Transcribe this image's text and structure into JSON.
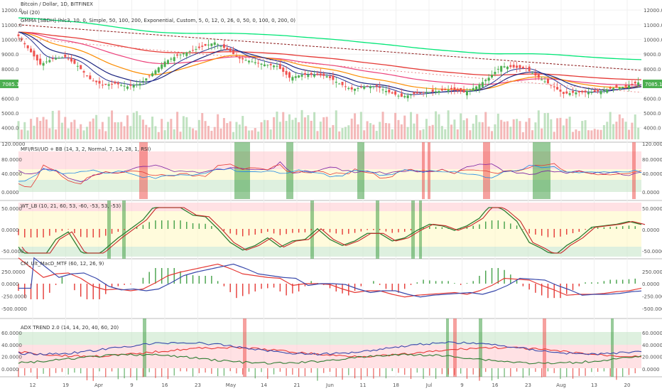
{
  "header": {
    "title": "Bitcoin / Dollar, 1D, BITFINEX",
    "vol_label": "Vol (20)",
    "gmma_label": "GMMA [SBDH] (hlc3, 10, 0, Simple, 50, 100, 200, Exponential, Custom, 5, 0, 12, 0, 26, 0, 50, 0, 100, 0, 200, 0)"
  },
  "price_badge": "7085.1",
  "panes": {
    "mfi": {
      "label": "MFI/RSI/UO + BB (14, 3, 2, Normal, 7, 14, 28, 1, RSI)",
      "ticks": [
        "120.0000",
        "80.0000",
        "40.0000",
        "0.0000"
      ]
    },
    "wt": {
      "label": "WT_LB (10, 21, 60, 53, -60, -53, 53, -53)",
      "ticks": [
        "50.0000",
        "0.0000",
        "-50.0000"
      ]
    },
    "macd": {
      "label": "CM_Ult_MacD_MTF (60, 12, 26, 9)",
      "ticks": [
        "250.0000",
        "0.0000",
        "-250.0000",
        "-500.0000"
      ]
    },
    "adx": {
      "label": "ADX TREND 2.0 (14, 14, 20, 40, 60, 20)",
      "ticks": [
        "60.0000",
        "40.0000",
        "20.0000",
        "0.0000"
      ]
    }
  },
  "colors": {
    "up": "#4caf50",
    "down": "#ef5350",
    "ema_green": "#00e676",
    "ema_red": "#e53935",
    "ema_pink": "#ec407a",
    "ema_orange": "#fb8c00",
    "ema_blue": "#1a237e",
    "macd_red": "#e53935",
    "macd_green": "#2e7d32",
    "blue_line": "#3949ab"
  },
  "chart_data": {
    "type": "candlestick",
    "symbol": "Bitcoin / Dollar",
    "interval": "1D",
    "exchange": "BITFINEX",
    "x_tick_labels": [
      "12",
      "19",
      "Apr",
      "9",
      "16",
      "23",
      "May",
      "14",
      "21",
      "Jun",
      "11",
      "18",
      "Jul",
      "9",
      "16",
      "23",
      "Aug",
      "13",
      "20"
    ],
    "price_axis": [
      "12000.0",
      "11000.0",
      "10000.0",
      "9000.0",
      "8000.0",
      "7000.0",
      "6000.0",
      "5000.0",
      "4000.0"
    ],
    "price_range": [
      3500,
      12200
    ],
    "last_price": 7085.1,
    "close_path": [
      [
        0,
        10500
      ],
      [
        4,
        9400
      ],
      [
        8,
        8300
      ],
      [
        12,
        8700
      ],
      [
        16,
        8800
      ],
      [
        20,
        8200
      ],
      [
        24,
        7300
      ],
      [
        28,
        6900
      ],
      [
        32,
        7000
      ],
      [
        36,
        6800
      ],
      [
        40,
        7000
      ],
      [
        44,
        7700
      ],
      [
        48,
        8500
      ],
      [
        52,
        8900
      ],
      [
        56,
        9200
      ],
      [
        60,
        9500
      ],
      [
        64,
        9800
      ],
      [
        68,
        9300
      ],
      [
        72,
        8700
      ],
      [
        76,
        8500
      ],
      [
        80,
        8300
      ],
      [
        84,
        8200
      ],
      [
        88,
        7400
      ],
      [
        92,
        7600
      ],
      [
        96,
        7600
      ],
      [
        100,
        7500
      ],
      [
        104,
        7000
      ],
      [
        108,
        6600
      ],
      [
        112,
        6800
      ],
      [
        116,
        6800
      ],
      [
        120,
        6400
      ],
      [
        124,
        6100
      ],
      [
        128,
        6300
      ],
      [
        132,
        6400
      ],
      [
        136,
        6500
      ],
      [
        140,
        6600
      ],
      [
        144,
        6400
      ],
      [
        148,
        6800
      ],
      [
        152,
        7400
      ],
      [
        156,
        8200
      ],
      [
        160,
        8100
      ],
      [
        164,
        8000
      ],
      [
        168,
        7400
      ],
      [
        172,
        6900
      ],
      [
        176,
        6300
      ],
      [
        180,
        6400
      ],
      [
        184,
        6400
      ],
      [
        188,
        6500
      ],
      [
        192,
        6700
      ],
      [
        196,
        6800
      ],
      [
        200,
        7085
      ]
    ]
  }
}
